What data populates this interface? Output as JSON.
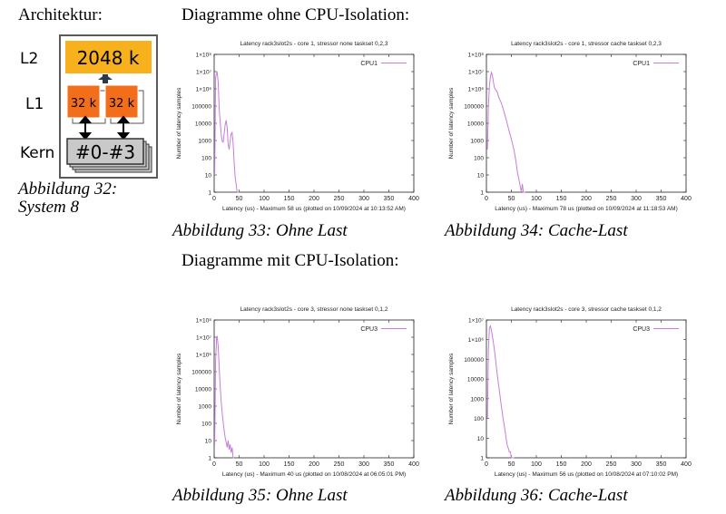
{
  "headings": {
    "architecture": "Architektur:",
    "without_isolation": "Diagramme ohne CPU-Isolation:",
    "with_isolation": "Diagramme mit CPU-Isolation:"
  },
  "architecture": {
    "caption_line1": "Abbildung 32:",
    "caption_line2": "System 8",
    "l2_label": "L2",
    "l2_value": "2048 k",
    "l1_label": "L1",
    "l1_left_value": "32 k",
    "l1_right_value": "32 k",
    "core_label": "Kern",
    "core_value": "#0-#3",
    "colors": {
      "l2": "#f7b11c",
      "l1": "#f26e1a",
      "core": "#c9c9c9",
      "frame": "#5a5a5a"
    }
  },
  "captions": {
    "fig33": "Abbildung 33: Ohne Last",
    "fig34": "Abbildung 34: Cache-Last",
    "fig35": "Abbildung 35: Ohne Last",
    "fig36": "Abbildung 36: Cache-Last"
  },
  "chart_data": [
    {
      "type": "line",
      "title": "Latency rack3slot2s - core 1,  stressor none taskset 0,2,3",
      "xlabel": "Latency (us) - Maximum 58 us (plotted on 10/09/2024 at 10:13:52 AM)",
      "ylabel": "Number of latency samples",
      "xlim": [
        0,
        400
      ],
      "ylim": [
        1,
        100000000
      ],
      "yscale": "log",
      "xticks": [
        "0",
        "50",
        "100",
        "150",
        "200",
        "250",
        "300",
        "350",
        "400"
      ],
      "yticks": [
        "1",
        "10",
        "100",
        "1000",
        "10000",
        "100000",
        "1×10⁶",
        "1×10⁷",
        "1×10⁸"
      ],
      "legend_position": "top-right",
      "color": "#c77ddb",
      "series": [
        {
          "name": "CPU1",
          "x": [
            1,
            3,
            5,
            6,
            8,
            10,
            12,
            14,
            16,
            18,
            20,
            22,
            24,
            26,
            28,
            30,
            32,
            34,
            36,
            38,
            40,
            42,
            44,
            46,
            48,
            50
          ],
          "y": [
            10,
            5000000,
            8000000,
            9000000,
            2500000,
            80000,
            12000,
            2500,
            900,
            800,
            2500,
            8000,
            15000,
            6000,
            600,
            300,
            900,
            2500,
            3000,
            700,
            60,
            8,
            3,
            1,
            1,
            0
          ]
        }
      ]
    },
    {
      "type": "line",
      "title": "Latency rack3slot2s - core 1,  stressor cache taskset 0,2,3",
      "xlabel": "Latency (us) - Maximum 78 us (plotted on 10/09/2024 at 11:18:53 AM)",
      "ylabel": "Number of latency samples",
      "xlim": [
        0,
        400
      ],
      "ylim": [
        1,
        100000000
      ],
      "yscale": "log",
      "xticks": [
        "0",
        "50",
        "100",
        "150",
        "200",
        "250",
        "300",
        "350",
        "400"
      ],
      "yticks": [
        "1",
        "10",
        "100",
        "1000",
        "10000",
        "100000",
        "1×10⁶",
        "1×10⁷",
        "1×10⁸"
      ],
      "legend_position": "top-right",
      "color": "#c77ddb",
      "series": [
        {
          "name": "CPU1",
          "x": [
            2,
            4,
            6,
            8,
            10,
            12,
            14,
            16,
            18,
            20,
            22,
            25,
            30,
            35,
            40,
            45,
            50,
            55,
            58,
            60,
            62,
            64,
            66,
            68,
            70,
            72,
            74,
            76,
            78
          ],
          "y": [
            300,
            100000,
            1500000,
            5000000,
            9000000,
            6000000,
            2500000,
            1200000,
            900000,
            800000,
            600000,
            300000,
            150000,
            50000,
            15000,
            4000,
            1200,
            300,
            100,
            40,
            15,
            8,
            4,
            2,
            1,
            3,
            1,
            1,
            0
          ]
        }
      ]
    },
    {
      "type": "line",
      "title": "Latency rack3slot2s - core 3,  stressor none taskset 0,1,2",
      "xlabel": "Latency (us) - Maximum 40 us (plotted on 10/08/2024 at 06:05:01 PM)",
      "ylabel": "Number of latency samples",
      "xlim": [
        0,
        400
      ],
      "ylim": [
        1,
        100000000
      ],
      "yscale": "log",
      "xticks": [
        "0",
        "50",
        "100",
        "150",
        "200",
        "250",
        "300",
        "350",
        "400"
      ],
      "yticks": [
        "1",
        "10",
        "100",
        "1000",
        "10000",
        "100000",
        "1×10⁶",
        "1×10⁷",
        "1×10⁸"
      ],
      "legend_position": "top-right",
      "color": "#c77ddb",
      "series": [
        {
          "name": "CPU3",
          "x": [
            1,
            3,
            5,
            6,
            8,
            10,
            12,
            14,
            16,
            18,
            20,
            22,
            24,
            26,
            28,
            30,
            32,
            34,
            36,
            38,
            40
          ],
          "y": [
            5,
            500000,
            10000000,
            12000000,
            3000000,
            200000,
            15000,
            2000,
            400,
            120,
            40,
            15,
            8,
            4,
            10,
            3,
            6,
            2,
            4,
            1,
            0
          ]
        }
      ]
    },
    {
      "type": "line",
      "title": "Latency rack3slot2s - core 3,  stressor cache taskset 0,1,2",
      "xlabel": "Latency (us) - Maximum 56 us (plotted on 10/08/2024 at 07:10:02 PM)",
      "ylabel": "Number of latency samples",
      "xlim": [
        0,
        400
      ],
      "ylim": [
        1,
        10000000
      ],
      "yscale": "log",
      "xticks": [
        "0",
        "50",
        "100",
        "150",
        "200",
        "250",
        "300",
        "350",
        "400"
      ],
      "yticks": [
        "1",
        "10",
        "100",
        "1000",
        "10000",
        "100000",
        "1×10⁶",
        "1×10⁷"
      ],
      "legend_position": "top-right",
      "color": "#c77ddb",
      "series": [
        {
          "name": "CPU3",
          "x": [
            2,
            4,
            6,
            8,
            10,
            12,
            14,
            16,
            18,
            20,
            22,
            24,
            26,
            28,
            30,
            32,
            34,
            36,
            38,
            40,
            42,
            44,
            46,
            48,
            50,
            52,
            54,
            56
          ],
          "y": [
            100,
            300000,
            4000000,
            5000000,
            3000000,
            1500000,
            700000,
            300000,
            120000,
            40000,
            15000,
            6000,
            2500,
            1000,
            400,
            180,
            80,
            40,
            18,
            8,
            4,
            3,
            2,
            2,
            1,
            1,
            1,
            0
          ]
        }
      ]
    }
  ]
}
